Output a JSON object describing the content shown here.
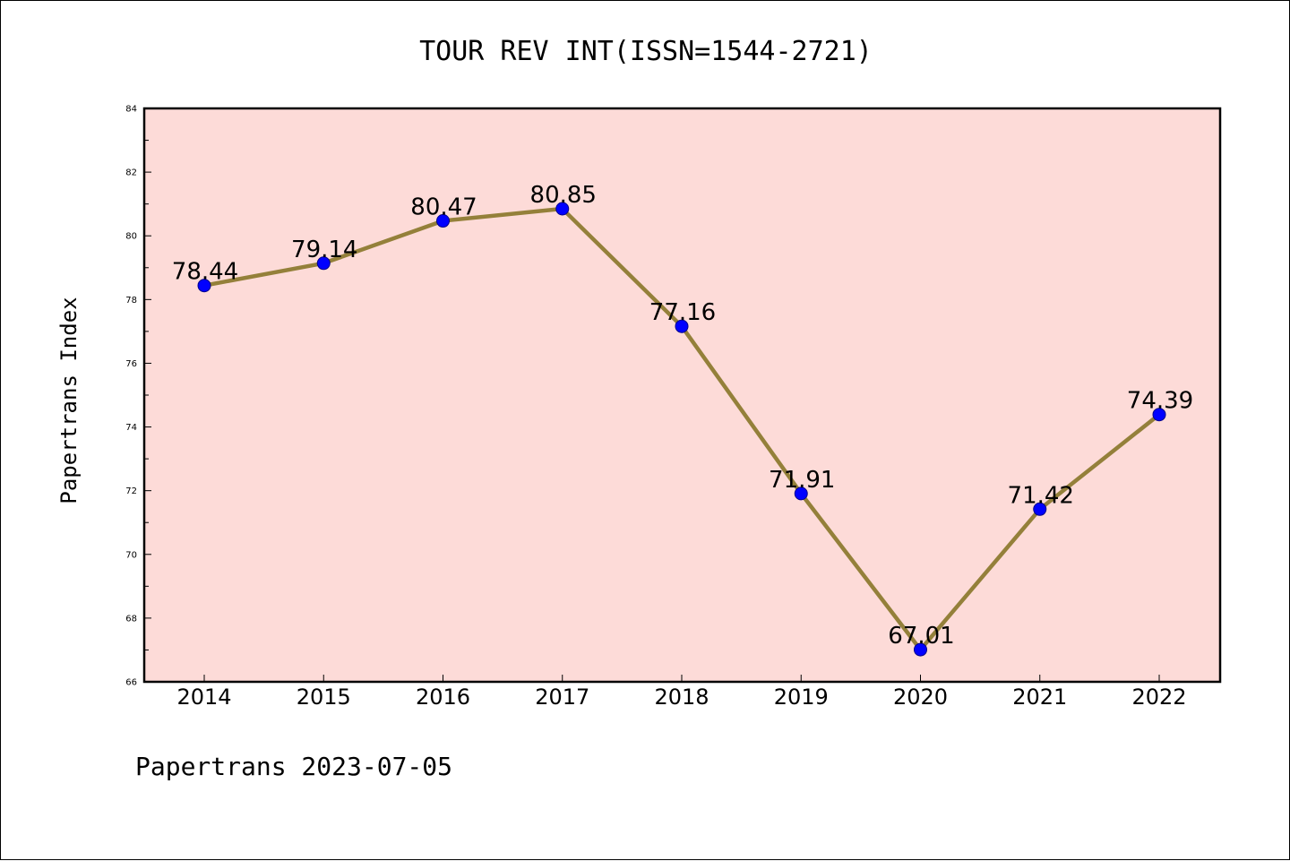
{
  "chart_data": {
    "type": "line",
    "title": "TOUR REV INT(ISSN=1544-2721)",
    "ylabel": "Papertrans Index",
    "xlabel": "",
    "categories": [
      "2014",
      "2015",
      "2016",
      "2017",
      "2018",
      "2019",
      "2020",
      "2021",
      "2022"
    ],
    "values": [
      78.44,
      79.14,
      80.47,
      80.85,
      77.16,
      71.91,
      67.01,
      71.42,
      74.39
    ],
    "value_labels": [
      "78.44",
      "79.14",
      "80.47",
      "80.85",
      "77.16",
      "71.91",
      "67.01",
      "71.42",
      "74.39"
    ],
    "ylim": [
      66,
      84
    ],
    "yticks": [
      "66",
      "68",
      "70",
      "72",
      "74",
      "76",
      "78",
      "80",
      "82",
      "84"
    ],
    "grid": false,
    "legend": "none"
  },
  "footer": "Papertrans 2023-07-05",
  "colors": {
    "plot_background": "#fddbd8",
    "line": "#94803a",
    "marker_fill": "#0000ff",
    "marker_edge": "#00008b",
    "axes": "#000000"
  }
}
